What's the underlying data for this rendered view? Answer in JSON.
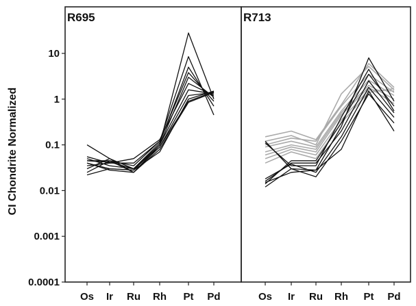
{
  "chart_data": [
    {
      "type": "line",
      "title": "R695",
      "ylabel": "CI Chondrite Normalized",
      "xlabel": "",
      "categories": [
        "Os",
        "Ir",
        "Ru",
        "Rh",
        "Pt",
        "Pd"
      ],
      "yscale": "log",
      "ylim": [
        0.0001,
        50
      ],
      "yticks": [
        {
          "value": 10,
          "label": "10"
        },
        {
          "value": 1,
          "label": "1"
        },
        {
          "value": 0.1,
          "label": "0.1"
        },
        {
          "value": 0.01,
          "label": "0.01"
        },
        {
          "value": 0.001,
          "label": "0.001"
        },
        {
          "value": 0.0001,
          "label": "0.0001"
        }
      ],
      "grid": false,
      "series": [
        {
          "color": "#111111",
          "values": [
            0.1,
            0.05,
            0.025,
            0.1,
            28,
            1.0
          ]
        },
        {
          "color": "#111111",
          "values": [
            0.055,
            0.04,
            0.04,
            0.12,
            8.5,
            0.45
          ]
        },
        {
          "color": "#111111",
          "values": [
            0.05,
            0.035,
            0.03,
            0.11,
            5.0,
            0.7
          ]
        },
        {
          "color": "#111111",
          "values": [
            0.045,
            0.045,
            0.035,
            0.12,
            3.8,
            0.9
          ]
        },
        {
          "color": "#111111",
          "values": [
            0.04,
            0.03,
            0.028,
            0.1,
            3.0,
            1.1
          ]
        },
        {
          "color": "#111111",
          "values": [
            0.035,
            0.04,
            0.05,
            0.13,
            2.2,
            1.2
          ]
        },
        {
          "color": "#111111",
          "values": [
            0.03,
            0.05,
            0.03,
            0.1,
            1.6,
            1.3
          ]
        },
        {
          "color": "#111111",
          "values": [
            0.025,
            0.045,
            0.025,
            0.09,
            1.2,
            1.4
          ]
        },
        {
          "color": "#111111",
          "values": [
            0.022,
            0.03,
            0.028,
            0.07,
            1.0,
            1.5
          ]
        },
        {
          "color": "#111111",
          "values": [
            0.04,
            0.028,
            0.025,
            0.08,
            0.85,
            1.4
          ]
        },
        {
          "color": "#111111",
          "values": [
            0.045,
            0.042,
            0.03,
            0.09,
            0.9,
            1.45
          ]
        }
      ]
    },
    {
      "type": "line",
      "title": "R713",
      "ylabel": "",
      "xlabel": "",
      "categories": [
        "Os",
        "Ir",
        "Ru",
        "Rh",
        "Pt",
        "Pd"
      ],
      "yscale": "log",
      "ylim": [
        0.0001,
        50
      ],
      "grid": false,
      "series": [
        {
          "color": "#111111",
          "values": [
            0.12,
            0.03,
            0.028,
            0.25,
            8.0,
            0.9
          ]
        },
        {
          "color": "#111111",
          "values": [
            0.11,
            0.035,
            0.035,
            0.4,
            4.5,
            0.55
          ]
        },
        {
          "color": "#111111",
          "values": [
            0.014,
            0.045,
            0.045,
            0.3,
            3.5,
            0.7
          ]
        },
        {
          "color": "#111111",
          "values": [
            0.016,
            0.04,
            0.04,
            0.2,
            2.5,
            0.5
          ]
        },
        {
          "color": "#111111",
          "values": [
            0.018,
            0.038,
            0.025,
            0.15,
            1.8,
            0.4
          ]
        },
        {
          "color": "#111111",
          "values": [
            0.012,
            0.03,
            0.02,
            0.12,
            1.3,
            0.3
          ]
        },
        {
          "color": "#111111",
          "values": [
            0.015,
            0.025,
            0.028,
            0.08,
            1.5,
            0.2
          ]
        },
        {
          "color": "#aaaaaa",
          "values": [
            0.15,
            0.2,
            0.13,
            0.75,
            6.0,
            1.8
          ]
        },
        {
          "color": "#aaaaaa",
          "values": [
            0.12,
            0.16,
            0.1,
            1.3,
            5.2,
            1.6
          ]
        },
        {
          "color": "#aaaaaa",
          "values": [
            0.1,
            0.14,
            0.12,
            0.7,
            3.5,
            1.4
          ]
        },
        {
          "color": "#aaaaaa",
          "values": [
            0.09,
            0.12,
            0.09,
            0.55,
            2.6,
            1.2
          ]
        },
        {
          "color": "#aaaaaa",
          "values": [
            0.07,
            0.1,
            0.08,
            0.5,
            2.0,
            1.0
          ]
        },
        {
          "color": "#aaaaaa",
          "values": [
            0.06,
            0.09,
            0.07,
            0.45,
            1.8,
            0.8
          ]
        },
        {
          "color": "#aaaaaa",
          "values": [
            0.05,
            0.08,
            0.06,
            0.35,
            1.6,
            1.5
          ]
        },
        {
          "color": "#aaaaaa",
          "values": [
            0.04,
            0.07,
            0.05,
            0.3,
            1.4,
            1.7
          ]
        }
      ]
    }
  ]
}
